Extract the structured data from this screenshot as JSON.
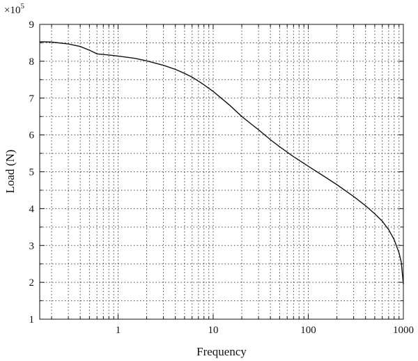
{
  "chart_data": {
    "type": "line",
    "xlabel": "Frequency",
    "ylabel": "Load (N)",
    "y_multiplier": {
      "base": "×10",
      "exponent": "5"
    },
    "xscale": "log",
    "xlim": [
      0.15,
      1000
    ],
    "ylim": [
      1,
      9
    ],
    "grid": true,
    "x_ticks": [
      {
        "value": 1,
        "label": "1"
      },
      {
        "value": 10,
        "label": "10"
      },
      {
        "value": 100,
        "label": "100"
      },
      {
        "value": 1000,
        "label": "1000"
      }
    ],
    "y_ticks": [
      {
        "value": 1,
        "label": "1"
      },
      {
        "value": 2,
        "label": "2"
      },
      {
        "value": 3,
        "label": "3"
      },
      {
        "value": 4,
        "label": "4"
      },
      {
        "value": 5,
        "label": "5"
      },
      {
        "value": 6,
        "label": "6"
      },
      {
        "value": 7,
        "label": "7"
      },
      {
        "value": 8,
        "label": "8"
      },
      {
        "value": 9,
        "label": "9"
      }
    ],
    "series": [
      {
        "x": [
          0.15,
          0.2,
          0.3,
          0.4,
          0.5,
          0.6,
          0.8,
          1,
          1.5,
          2,
          3,
          4,
          5,
          6,
          7,
          8,
          10,
          12,
          15,
          20,
          25,
          30,
          40,
          50,
          70,
          100,
          150,
          200,
          300,
          400,
          500,
          600,
          700,
          800,
          900,
          950,
          1000
        ],
        "y": [
          8.53,
          8.52,
          8.47,
          8.4,
          8.3,
          8.2,
          8.17,
          8.14,
          8.08,
          8.01,
          7.89,
          7.78,
          7.67,
          7.57,
          7.46,
          7.36,
          7.18,
          7.01,
          6.8,
          6.5,
          6.3,
          6.14,
          5.87,
          5.68,
          5.41,
          5.15,
          4.86,
          4.65,
          4.33,
          4.08,
          3.86,
          3.66,
          3.43,
          3.16,
          2.8,
          2.55,
          1.95
        ]
      }
    ]
  }
}
